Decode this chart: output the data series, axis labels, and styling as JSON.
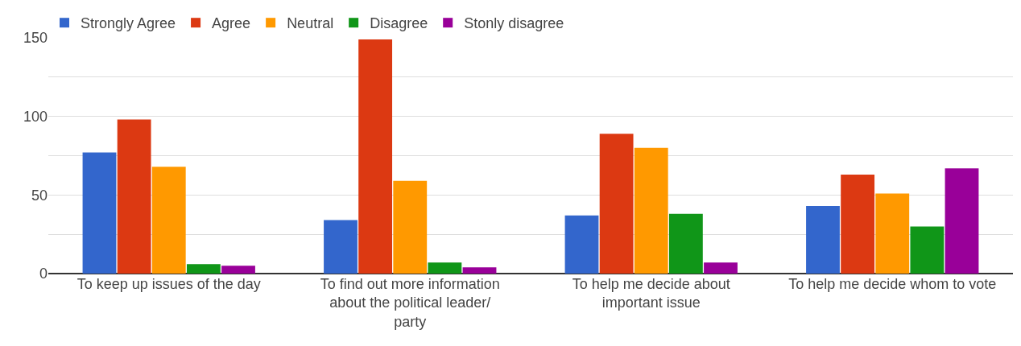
{
  "chart_data": {
    "type": "bar",
    "categories": [
      "To keep up issues of the day",
      "To find out more information about the political leader/ party",
      "To help me decide about important issue",
      "To help me decide whom to vote"
    ],
    "series": [
      {
        "name": "Strongly Agree",
        "color": "#3366cc",
        "values": [
          77,
          34,
          37,
          43
        ]
      },
      {
        "name": "Agree",
        "color": "#dc3912",
        "values": [
          98,
          149,
          89,
          63
        ]
      },
      {
        "name": "Neutral",
        "color": "#ff9900",
        "values": [
          68,
          59,
          80,
          51
        ]
      },
      {
        "name": "Disagree",
        "color": "#109618",
        "values": [
          6,
          7,
          38,
          30
        ]
      },
      {
        "name": "Stonly disagree",
        "color": "#990099",
        "values": [
          5,
          4,
          7,
          67
        ]
      }
    ],
    "ylim": [
      0,
      150
    ],
    "yticks": [
      0,
      {
        "value": 25,
        "label": null
      },
      50,
      {
        "value": 75,
        "label": null
      },
      100,
      {
        "value": 125,
        "label": null
      },
      150
    ],
    "grid": true,
    "legend": "top left"
  }
}
